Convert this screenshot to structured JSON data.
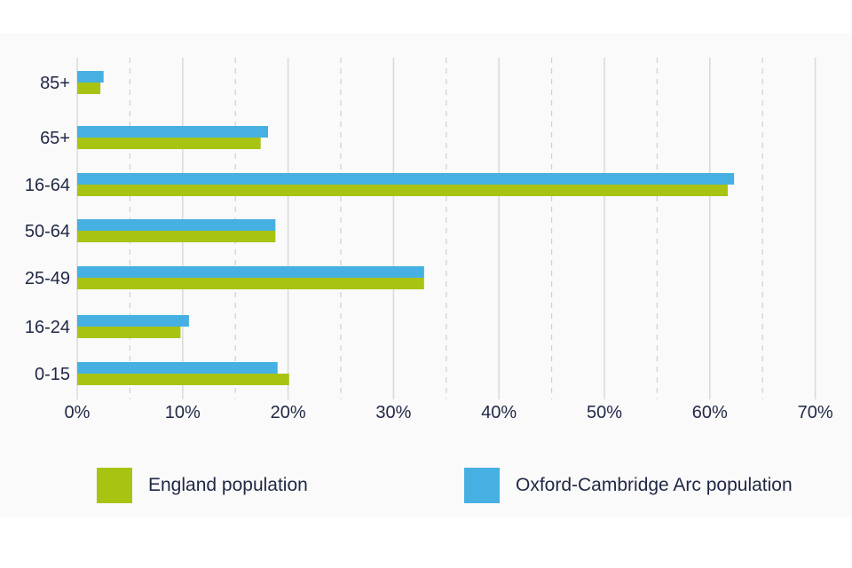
{
  "chart_data": {
    "type": "bar",
    "orientation": "horizontal",
    "categories": [
      "85+",
      "65+",
      "16-64",
      "50-64",
      "25-49",
      "16-24",
      "0-15"
    ],
    "series": [
      {
        "name": "Oxford-Cambridge Arc population",
        "color": "#45b0e1",
        "values": [
          2.5,
          18.1,
          62.3,
          18.8,
          32.9,
          10.6,
          19.0
        ]
      },
      {
        "name": "England population",
        "color": "#a9c312",
        "values": [
          2.2,
          17.4,
          61.7,
          18.8,
          32.9,
          9.8,
          20.1
        ]
      }
    ],
    "x_ticks": [
      "0%",
      "10%",
      "20%",
      "30%",
      "40%",
      "50%",
      "60%",
      "70%"
    ],
    "xlim": [
      0,
      70
    ],
    "grid": "vertical lines (solid at 10% steps, dashed at 5% midpoints)",
    "legend_position": "bottom"
  },
  "legend": {
    "england": "England population",
    "arc": "Oxford-Cambridge Arc population"
  }
}
